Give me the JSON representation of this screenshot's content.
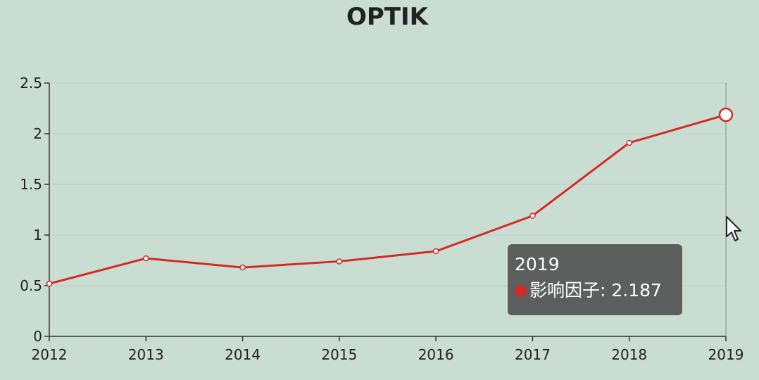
{
  "chart_data": {
    "type": "line",
    "title": "OPTIK",
    "x": [
      "2012",
      "2013",
      "2014",
      "2015",
      "2016",
      "2017",
      "2018",
      "2019"
    ],
    "series": [
      {
        "name": "影响因子",
        "values": [
          0.52,
          0.77,
          0.68,
          0.74,
          0.84,
          1.19,
          1.91,
          2.187
        ]
      }
    ],
    "y_ticks": [
      "0",
      "0.5",
      "1",
      "1.5",
      "2",
      "2.5"
    ],
    "ylim": [
      0,
      2.5
    ],
    "grid": true,
    "legend": "none",
    "colors": {
      "line": "#d42a26",
      "axis": "#333333",
      "grid": "#b9cfc4"
    }
  },
  "tooltip": {
    "x_label": "2019",
    "series_name": "影响因子",
    "value": "2.187",
    "text": "影响因子: 2.187"
  },
  "cursor": {
    "icon": "arrow-pointer-icon"
  }
}
